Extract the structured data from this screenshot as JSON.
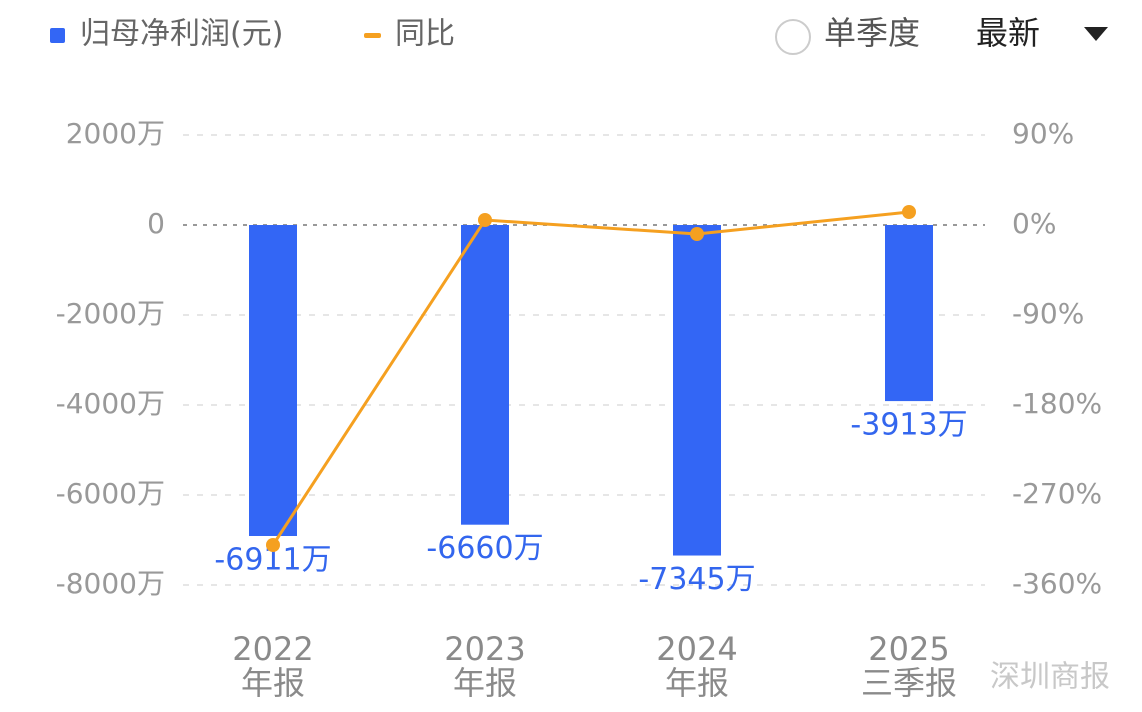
{
  "chart_data": {
    "type": "bar",
    "categories": [
      "2022\n年报",
      "2023\n年报",
      "2024\n年报",
      "2025\n三季报"
    ],
    "series": [
      {
        "name": "归母净利润(元)",
        "color": "#3366f5",
        "values": [
          -6911,
          -6660,
          -7345,
          -3913
        ],
        "value_labels": [
          "-6911万",
          "-6660万",
          "-7345万",
          "-3913万"
        ]
      },
      {
        "name": "同比",
        "type": "line",
        "axis": "y2",
        "color": "#f5a020",
        "values": [
          -320,
          5,
          -9,
          13
        ]
      }
    ],
    "ylim": [
      2000,
      -8000
    ],
    "yticks": [
      {
        "value": 2000,
        "label": "2000万"
      },
      0,
      {
        "value": -2000,
        "label": "-2000万"
      },
      {
        "value": -4000,
        "label": "-4000万"
      },
      {
        "value": -6000,
        "label": "-6000万"
      },
      {
        "value": -8000,
        "label": "-8000万"
      }
    ],
    "y2lim": [
      90,
      -360
    ],
    "y2ticks": [
      {
        "value": 90,
        "label": "90%"
      },
      {
        "value": 0,
        "label": "0%"
      },
      {
        "value": -90,
        "label": "-90%"
      },
      {
        "value": -180,
        "label": "-180%"
      },
      {
        "value": -270,
        "label": "-270%"
      },
      {
        "value": -360,
        "label": "-360%"
      }
    ],
    "grid": true
  },
  "controls": {
    "single_quarter": "单季度",
    "period": "最新"
  },
  "watermark": "深圳商报"
}
